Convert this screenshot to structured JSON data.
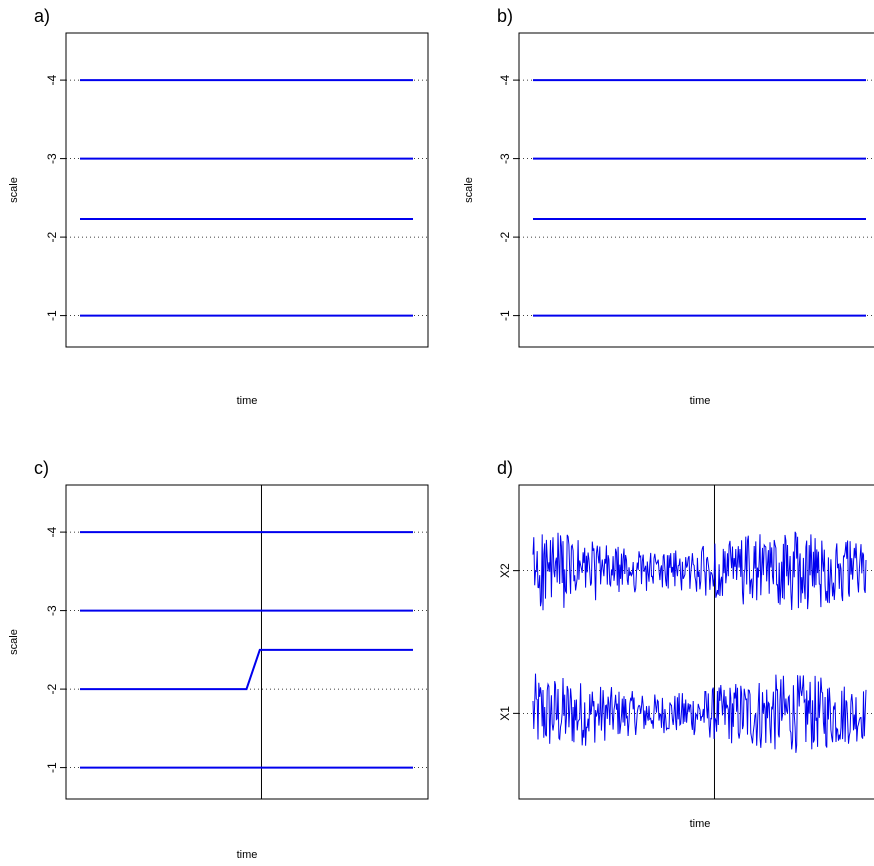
{
  "chart_data": [
    {
      "panel": "a)",
      "type": "line",
      "xlabel": "time",
      "ylabel": "scale",
      "ylim": [
        -0.6,
        -4.6
      ],
      "yticks": [
        "-1",
        "-2",
        "-3",
        "-4"
      ],
      "ytick_values": [
        -1,
        -2,
        -3,
        -4
      ],
      "reference_lines": [
        -1,
        -2,
        -3,
        -4
      ],
      "series": [
        {
          "values": [
            -1,
            -1
          ]
        },
        {
          "values": [
            -2.23,
            -2.23
          ]
        },
        {
          "values": [
            -3,
            -3
          ]
        },
        {
          "values": [
            -4,
            -4
          ]
        }
      ],
      "x": [
        0,
        1
      ]
    },
    {
      "panel": "b)",
      "type": "line",
      "xlabel": "time",
      "ylabel": "scale",
      "ylim": [
        -0.6,
        -4.6
      ],
      "yticks": [
        "-1",
        "-2",
        "-3",
        "-4"
      ],
      "ytick_values": [
        -1,
        -2,
        -3,
        -4
      ],
      "reference_lines": [
        -1,
        -2,
        -3,
        -4
      ],
      "series": [
        {
          "values": [
            -1,
            -1
          ]
        },
        {
          "values": [
            -2.23,
            -2.23
          ]
        },
        {
          "values": [
            -3,
            -3
          ]
        },
        {
          "values": [
            -4,
            -4
          ]
        }
      ],
      "x": [
        0,
        1
      ]
    },
    {
      "panel": "c)",
      "type": "line",
      "xlabel": "time",
      "ylabel": "scale",
      "ylim": [
        -0.6,
        -4.6
      ],
      "yticks": [
        "-1",
        "-2",
        "-3",
        "-4"
      ],
      "ytick_values": [
        -1,
        -2,
        -3,
        -4
      ],
      "reference_lines": [
        -1,
        -2,
        -3,
        -4
      ],
      "vertical_line_x": 0.54,
      "series": [
        {
          "x": [
            0,
            1
          ],
          "values": [
            -1,
            -1
          ]
        },
        {
          "x": [
            0,
            0.5,
            0.54,
            1
          ],
          "values": [
            -2,
            -2,
            -2.5,
            -2.5
          ]
        },
        {
          "x": [
            0,
            1
          ],
          "values": [
            -3,
            -3
          ]
        },
        {
          "x": [
            0,
            1
          ],
          "values": [
            -4,
            -4
          ]
        }
      ]
    },
    {
      "panel": "d)",
      "type": "line",
      "xlabel": "time",
      "ylabel": "",
      "yticks": [
        "X1",
        "X2"
      ],
      "ytick_values": [
        1,
        2
      ],
      "ylim": [
        0.4,
        2.6
      ],
      "reference_lines": [
        1,
        2
      ],
      "vertical_line_x": 0.54,
      "n_points": 400,
      "series": [
        {
          "name": "X1",
          "offset": 1,
          "amplitude": 0.28
        },
        {
          "name": "X2",
          "offset": 2,
          "amplitude": 0.28
        }
      ]
    }
  ]
}
